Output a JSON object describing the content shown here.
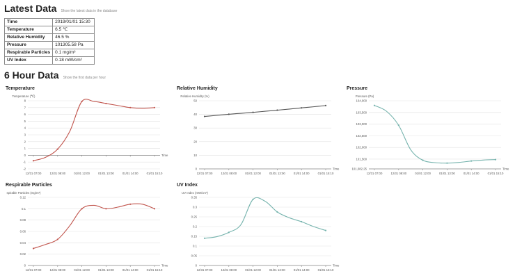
{
  "latest": {
    "title": "Latest Data",
    "subtitle": "Show the latest data in the database",
    "rows": [
      {
        "label": "Time",
        "value": "2019/01/01 15:30"
      },
      {
        "label": "Temperature",
        "value": "6.5 ℃"
      },
      {
        "label": "Relative Humidity",
        "value": "46.5 %"
      },
      {
        "label": "Pressure",
        "value": "101305.58 Pa"
      },
      {
        "label": "Respirable Particles",
        "value": "0.1 mg/m³"
      },
      {
        "label": "UV Index",
        "value": "0.18 mW/cm²"
      }
    ]
  },
  "hourly": {
    "title": "6 Hour Data",
    "subtitle": "Show the first data per hour"
  },
  "chart_data": [
    {
      "type": "line",
      "title": "Temperature",
      "ylabel": "Temperature (℃)",
      "xlabel": "Time",
      "color": "#c1554d",
      "categories": [
        "12/31 07:00",
        "12/31 08:00",
        "01/01 12:00",
        "01/01 13:00",
        "01/01 14:00",
        "01/01 15:10"
      ],
      "x_ticks": [
        0,
        1,
        2,
        3,
        4,
        5
      ],
      "x": [
        0,
        0.5,
        1,
        1.5,
        2,
        2.5,
        3,
        3.5,
        4,
        4.5,
        5
      ],
      "values": [
        -0.8,
        -0.3,
        0.9,
        3.5,
        7.9,
        7.9,
        7.6,
        7.3,
        7.0,
        6.9,
        7.0
      ],
      "ylim": [
        -2,
        8
      ],
      "yticks": [
        "-2",
        "-1",
        "0",
        "1",
        "2",
        "3",
        "4",
        "5",
        "6",
        "7",
        "8"
      ],
      "grid": true,
      "zero_line": true
    },
    {
      "type": "line",
      "title": "Relative Humidity",
      "ylabel": "Relative Humidity (%)",
      "xlabel": "Time",
      "color": "#555555",
      "categories": [
        "12/31 07:00",
        "12/31 08:00",
        "01/01 12:00",
        "01/01 13:00",
        "01/01 14:00",
        "01/01 15:10"
      ],
      "x_ticks": [
        0,
        1,
        2,
        3,
        4,
        5
      ],
      "x": [
        0,
        0.5,
        1,
        1.5,
        2,
        2.5,
        3,
        3.5,
        4,
        4.5,
        5
      ],
      "values": [
        38.5,
        39.3,
        40.1,
        40.8,
        41.5,
        42.3,
        43.1,
        43.9,
        44.8,
        45.6,
        46.5
      ],
      "ylim": [
        0,
        50
      ],
      "yticks": [
        "0",
        "10",
        "20",
        "30",
        "40",
        "50"
      ],
      "grid": true
    },
    {
      "type": "line",
      "title": "Pressure",
      "ylabel": "Pressure (Pa)",
      "xlabel": "Time",
      "color": "#75b3ad",
      "categories": [
        "12/31 07:00",
        "12/31 08:00",
        "01/01 12:00",
        "01/01 13:00",
        "01/01 14:00",
        "01/01 15:10"
      ],
      "x_ticks": [
        0,
        1,
        2,
        3,
        4,
        5
      ],
      "x": [
        0,
        0.5,
        1,
        1.5,
        2,
        2.5,
        3,
        3.5,
        4,
        4.5,
        5
      ],
      "values": [
        103800,
        103550,
        102950,
        101900,
        101450,
        101350,
        101330,
        101360,
        101420,
        101460,
        101480
      ],
      "ylim": [
        101082.25,
        104000
      ],
      "yticks": [
        "101,082.25",
        "101,500",
        "102,000",
        "102,500",
        "103,000",
        "103,500",
        "104,000"
      ],
      "ytick_values": [
        101082.25,
        101500,
        102000,
        102500,
        103000,
        103500,
        104000
      ],
      "grid": true
    },
    {
      "type": "line",
      "title": "Respirable Particles",
      "ylabel": "spirable Particles (mg/m³)",
      "xlabel": "Time",
      "color": "#c1554d",
      "categories": [
        "12/31 07:00",
        "12/31 08:00",
        "01/01 12:00",
        "01/01 13:00",
        "01/01 14:00",
        "01/01 15:10"
      ],
      "x_ticks": [
        0,
        1,
        2,
        3,
        4,
        5
      ],
      "x": [
        0,
        0.5,
        1,
        1.5,
        2,
        2.5,
        3,
        3.5,
        4,
        4.5,
        5
      ],
      "values": [
        0.03,
        0.037,
        0.046,
        0.07,
        0.1,
        0.106,
        0.1,
        0.103,
        0.108,
        0.108,
        0.1
      ],
      "ylim": [
        0,
        0.12
      ],
      "yticks": [
        "0",
        "0.02",
        "0.04",
        "0.06",
        "0.08",
        "0.1",
        "0.12"
      ],
      "grid": true
    },
    {
      "type": "line",
      "title": "UV Index",
      "ylabel": "UV Index (mW/cm²)",
      "xlabel": "Time",
      "color": "#75b3ad",
      "categories": [
        "12/31 07:00",
        "12/31 08:00",
        "01/01 12:00",
        "01/01 13:00",
        "01/01 14:00",
        "01/01 15:10"
      ],
      "x_ticks": [
        0,
        1,
        2,
        3,
        4,
        5
      ],
      "x": [
        0,
        0.5,
        1,
        1.5,
        2,
        2.5,
        3,
        3.5,
        4,
        4.5,
        5
      ],
      "values": [
        0.14,
        0.148,
        0.17,
        0.21,
        0.34,
        0.33,
        0.275,
        0.245,
        0.225,
        0.2,
        0.18
      ],
      "ylim": [
        0,
        0.35
      ],
      "yticks": [
        "0",
        "0.05",
        "0.1",
        "0.15",
        "0.2",
        "0.25",
        "0.3",
        "0.35"
      ],
      "grid": true
    }
  ]
}
